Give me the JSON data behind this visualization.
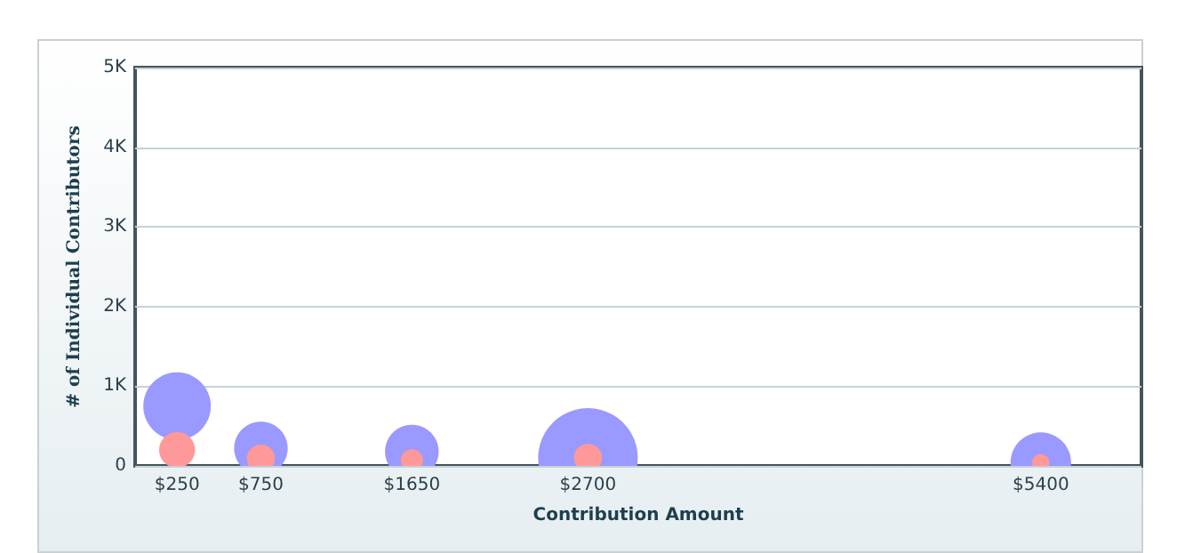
{
  "chart_data": {
    "type": "bubble",
    "xlabel": "Contribution Amount",
    "ylabel": "# of Individual Contributors",
    "x": [
      250,
      750,
      1650,
      2700,
      5400
    ],
    "series": [
      {
        "color": "#9999ff",
        "values": [
          750,
          220,
          180,
          100,
          40
        ],
        "sizes": [
          0.46,
          0.29,
          0.29,
          1,
          0.37
        ]
      },
      {
        "color": "#ff9999",
        "values": [
          200,
          90,
          70,
          100,
          40
        ],
        "sizes": [
          0.13,
          0.08,
          0.05,
          0.08,
          0.03
        ]
      }
    ],
    "xlim": [
      0,
      6000
    ],
    "xticks": [
      {
        "value": 250,
        "label": "$250"
      },
      {
        "value": 750,
        "label": "$750"
      },
      {
        "value": 1650,
        "label": "$1650"
      },
      {
        "value": 2700,
        "label": "$2700"
      },
      {
        "value": 5400,
        "label": "$5400"
      }
    ],
    "ylim": [
      0,
      5000
    ],
    "yticks": [
      {
        "value": 0,
        "label": "0"
      },
      {
        "value": 1000,
        "label": "1K"
      },
      {
        "value": 2000,
        "label": "2K"
      },
      {
        "value": 3000,
        "label": "3K"
      },
      {
        "value": 4000,
        "label": "4K"
      },
      {
        "value": 5000,
        "label": "5K"
      }
    ],
    "grid": "y",
    "marker": "circle"
  }
}
